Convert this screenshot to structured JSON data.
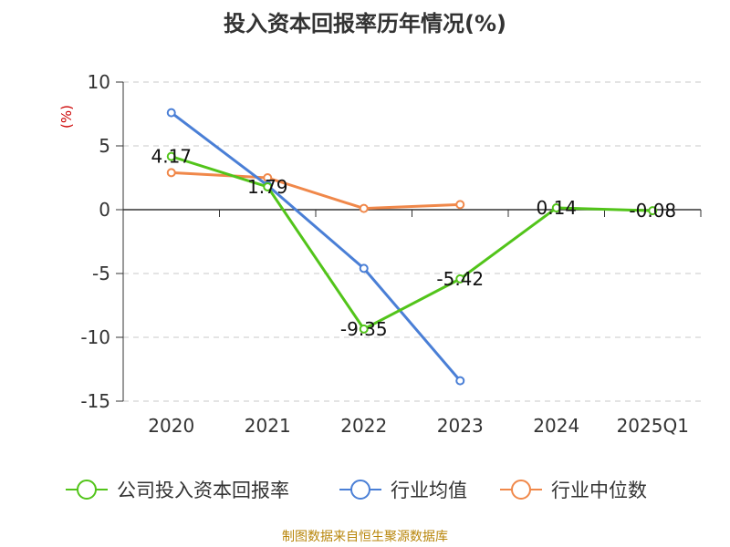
{
  "title": "投入资本回报率历年情况(%)",
  "source": "制图数据来自恒生聚源数据库",
  "chart_data": {
    "type": "line",
    "title": "投入资本回报率历年情况(%)",
    "ylabel": "(%)",
    "xlabel": "",
    "categories": [
      "2020",
      "2021",
      "2022",
      "2023",
      "2024",
      "2025Q1"
    ],
    "ylim": [
      -15,
      10
    ],
    "yticks": [
      10,
      5,
      0,
      -5,
      -10,
      -15
    ],
    "grid": true,
    "legend_position": "bottom",
    "series": [
      {
        "name": "公司投入资本回报率",
        "color": "#52c41a",
        "values": [
          4.17,
          1.79,
          -9.35,
          -5.42,
          0.14,
          -0.08
        ],
        "labels": [
          "4.17",
          "1.79",
          "-9.35",
          "-5.42",
          "0.14",
          "-0.08"
        ]
      },
      {
        "name": "行业均值",
        "color": "#4a7fd6",
        "values": [
          7.6,
          1.9,
          -4.6,
          -13.4,
          null,
          null
        ]
      },
      {
        "name": "行业中位数",
        "color": "#f0884a",
        "values": [
          2.9,
          2.5,
          0.1,
          0.4,
          null,
          null
        ]
      }
    ]
  }
}
